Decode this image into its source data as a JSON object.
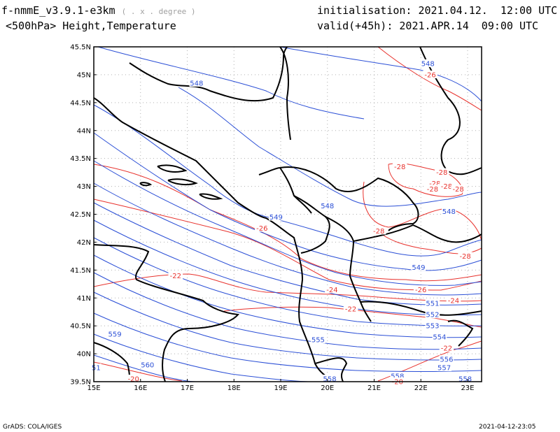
{
  "header": {
    "model": "f-nmmE_v3.9.1-e3km",
    "units": "( . x . degree )",
    "field": "<500hPa> Height,Temperature",
    "init_label": "initialisation:",
    "init_value": "2021.04.12.  12:00 UTC",
    "valid_label": "valid(+45h):",
    "valid_value": "2021.APR.14  09:00 UTC"
  },
  "footer": {
    "credit": "GrADS: COLA/IGES",
    "timestamp": "2021-04-12-23:05"
  },
  "colors": {
    "height": "#2b4fd6",
    "temperature": "#e8322d",
    "coast": "#000000",
    "grid": "#b0b0b0"
  },
  "map": {
    "lon_range": [
      15,
      23.3
    ],
    "lat_range": [
      39.5,
      45.5
    ],
    "lon_ticks": [
      "15E",
      "16E",
      "17E",
      "18E",
      "19E",
      "20E",
      "21E",
      "22E",
      "23E"
    ],
    "lat_ticks": [
      "39.5N",
      "40N",
      "40.5N",
      "41N",
      "41.5N",
      "42N",
      "42.5N",
      "43N",
      "43.5N",
      "44N",
      "44.5N",
      "45N",
      "45.5N"
    ],
    "height_labels": [
      {
        "text": "548",
        "lon": 17.2,
        "lat": 44.85
      },
      {
        "text": "548",
        "lon": 22.15,
        "lat": 45.2
      },
      {
        "text": "548",
        "lon": 20.0,
        "lat": 42.65
      },
      {
        "text": "548",
        "lon": 22.6,
        "lat": 42.55
      },
      {
        "text": "549",
        "lon": 18.9,
        "lat": 42.45
      },
      {
        "text": "549",
        "lon": 21.95,
        "lat": 41.55
      },
      {
        "text": "551",
        "lon": 22.25,
        "lat": 40.9
      },
      {
        "text": "552",
        "lon": 22.25,
        "lat": 40.7
      },
      {
        "text": "553",
        "lon": 22.25,
        "lat": 40.5
      },
      {
        "text": "554",
        "lon": 22.4,
        "lat": 40.3
      },
      {
        "text": "555",
        "lon": 19.8,
        "lat": 40.25
      },
      {
        "text": "556",
        "lon": 22.55,
        "lat": 39.9
      },
      {
        "text": "557",
        "lon": 22.5,
        "lat": 39.75
      },
      {
        "text": "558",
        "lon": 20.05,
        "lat": 39.55
      },
      {
        "text": "558",
        "lon": 21.5,
        "lat": 39.6
      },
      {
        "text": "558",
        "lon": 22.95,
        "lat": 39.55
      },
      {
        "text": "559",
        "lon": 15.45,
        "lat": 40.35
      },
      {
        "text": "560",
        "lon": 16.15,
        "lat": 39.8
      },
      {
        "text": "51",
        "lon": 15.05,
        "lat": 39.75
      }
    ],
    "temp_labels": [
      {
        "text": "-26",
        "lon": 22.2,
        "lat": 45.0
      },
      {
        "text": "-28",
        "lon": 21.55,
        "lat": 43.35
      },
      {
        "text": "-28",
        "lon": 22.45,
        "lat": 43.25
      },
      {
        "text": "-28",
        "lon": 22.3,
        "lat": 43.05
      },
      {
        "text": "-28",
        "lon": 22.55,
        "lat": 43.0
      },
      {
        "text": "-28",
        "lon": 22.25,
        "lat": 42.95
      },
      {
        "text": "-28",
        "lon": 22.8,
        "lat": 42.95
      },
      {
        "text": "-28",
        "lon": 21.1,
        "lat": 42.2
      },
      {
        "text": "-28",
        "lon": 22.95,
        "lat": 41.75
      },
      {
        "text": "-26",
        "lon": 18.6,
        "lat": 42.25
      },
      {
        "text": "-26",
        "lon": 22.0,
        "lat": 41.15
      },
      {
        "text": "-24",
        "lon": 20.1,
        "lat": 41.15
      },
      {
        "text": "-24",
        "lon": 22.7,
        "lat": 40.95
      },
      {
        "text": "-22",
        "lon": 16.75,
        "lat": 41.4
      },
      {
        "text": "-22",
        "lon": 20.5,
        "lat": 40.8
      },
      {
        "text": "-22",
        "lon": 22.55,
        "lat": 40.1
      },
      {
        "text": "-20",
        "lon": 15.85,
        "lat": 39.55
      },
      {
        "text": "-20",
        "lon": 21.5,
        "lat": 39.5
      }
    ]
  }
}
